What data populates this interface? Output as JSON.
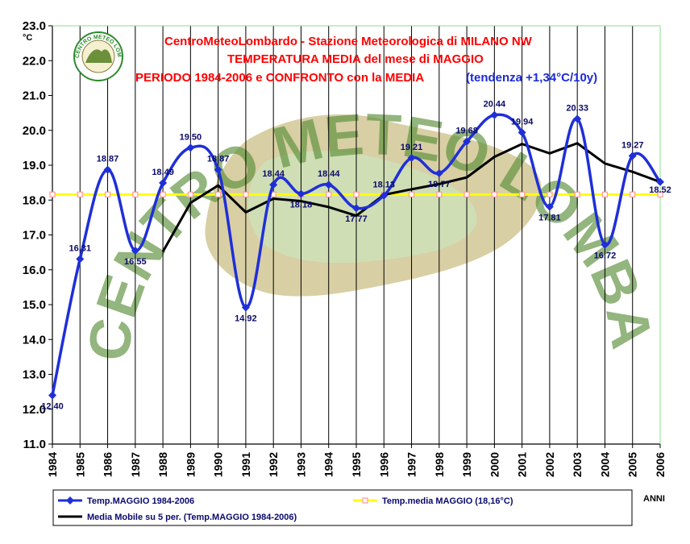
{
  "colors": {
    "series_main": "#1f2fd8",
    "series_mean": "#ffff00",
    "series_mean_marker": "#ff9a9a",
    "series_moving": "#000000",
    "title_red": "#ff0000",
    "title_blue": "#1a2bd6",
    "grid": "#000000",
    "plot_bg": "#ffffff",
    "logo_green": "#2e8b2e",
    "logo_brown": "#8a7a3a"
  },
  "chart_data": {
    "type": "line",
    "title_lines": [
      "CentroMeteoLombardo - Stazione Meteorologica di MILANO NW",
      "TEMPERATURA MEDIA del mese di MAGGIO",
      "PERIODO 1984-2006 e CONFRONTO con la MEDIA"
    ],
    "title_note": "(tendenza +1,34°C/10y)",
    "ylabel_unit": "°C",
    "xlabel": "ANNI",
    "ylim": [
      11.0,
      23.0
    ],
    "ystep": 1.0,
    "y_tick_labels": [
      "11.0",
      "12.0",
      "13.0",
      "14.0",
      "15.0",
      "16.0",
      "17.0",
      "18.0",
      "19.0",
      "20.0",
      "21.0",
      "22.0",
      "23.0"
    ],
    "grid": "vertical",
    "legend_position": "bottom",
    "categories": [
      "1984",
      "1985",
      "1986",
      "1987",
      "1988",
      "1989",
      "1990",
      "1991",
      "1992",
      "1993",
      "1994",
      "1995",
      "1996",
      "1997",
      "1998",
      "1999",
      "2000",
      "2001",
      "2002",
      "2003",
      "2004",
      "2005",
      "2006"
    ],
    "series": [
      {
        "name": "Temp.MAGGIO 1984-2006",
        "values": [
          12.4,
          16.31,
          18.87,
          16.55,
          18.49,
          19.5,
          18.87,
          14.92,
          18.44,
          18.18,
          18.44,
          17.77,
          18.13,
          19.21,
          18.77,
          19.68,
          20.44,
          19.94,
          17.81,
          20.33,
          16.72,
          19.27,
          18.52
        ],
        "data_labels": [
          "12.40",
          "16.31",
          "18.87",
          "16.55",
          "18.49",
          "19.50",
          "18.87",
          "14.92",
          "18.44",
          "18.18",
          "18.44",
          "17.77",
          "18.13",
          "19.21",
          "18.77",
          "19.68",
          "20.44",
          "19.94",
          "17.81",
          "20.33",
          "16.72",
          "19.27",
          "18.52"
        ]
      },
      {
        "name": "Temp.media MAGGIO (18,16°C)",
        "values": [
          18.16,
          18.16,
          18.16,
          18.16,
          18.16,
          18.16,
          18.16,
          18.16,
          18.16,
          18.16,
          18.16,
          18.16,
          18.16,
          18.16,
          18.16,
          18.16,
          18.16,
          18.16,
          18.16,
          18.16,
          18.16,
          18.16,
          18.16
        ]
      },
      {
        "name": "Media Mobile su 5 per. (Temp.MAGGIO 1984-2006)",
        "values": [
          null,
          null,
          null,
          null,
          16.52,
          17.92,
          18.42,
          17.65,
          18.04,
          17.97,
          17.8,
          17.55,
          18.15,
          18.31,
          18.46,
          18.65,
          19.24,
          19.61,
          19.34,
          19.63,
          19.05,
          18.81,
          18.52
        ]
      }
    ],
    "watermark": "CENTRO METEO LOMBARDO"
  },
  "logo": {
    "ring_text": "CENTRO METEO LOMBARDO"
  }
}
